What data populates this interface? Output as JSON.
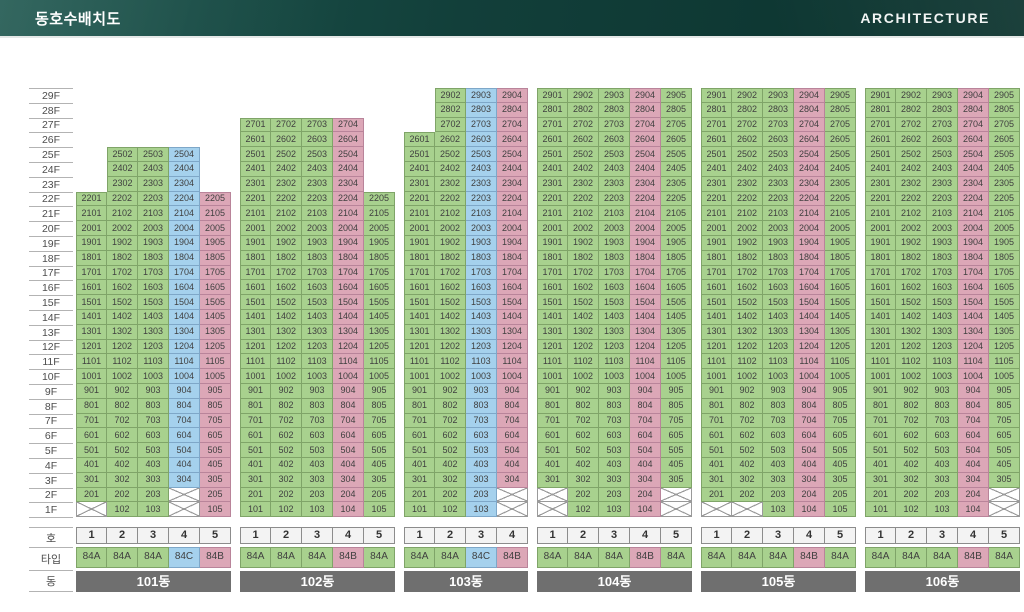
{
  "header": {
    "title": "동호수배치도",
    "brand": "ARCHITECTURE"
  },
  "axis": {
    "floor_labels": [
      "29F",
      "28F",
      "27F",
      "26F",
      "25F",
      "24F",
      "23F",
      "22F",
      "21F",
      "20F",
      "19F",
      "18F",
      "17F",
      "16F",
      "15F",
      "14F",
      "13F",
      "12F",
      "11F",
      "10F",
      "9F",
      "8F",
      "7F",
      "6F",
      "5F",
      "4F",
      "3F",
      "2F",
      "1F"
    ],
    "row_labels": {
      "unit_no": "호",
      "type": "타입",
      "building": "동"
    }
  },
  "palette": {
    "green": {
      "fill": "#a8d18e",
      "border": "#7fa468"
    },
    "blue": {
      "fill": "#a5d1ed",
      "border": "#7ea7c8"
    },
    "pink": {
      "fill": "#dca7b7",
      "border": "#b9849a"
    },
    "blocked": {
      "fill": "#ffffff",
      "border": "#9a9a9a"
    },
    "unit_no_cell": {
      "fill": "#f3f3f3",
      "border": "#8c8c8c",
      "text": "#333333"
    },
    "building_cell": {
      "fill": "#6f6f6f",
      "text": "#ffffff"
    },
    "header_bar": {
      "from": "#1d564e",
      "to": "#0b322d"
    },
    "cell_text": "#3f3f3f",
    "type_colors": {
      "84A": "green",
      "84B": "pink",
      "84C": "blue"
    }
  },
  "buildings": [
    {
      "name": "101동",
      "columns": [
        {
          "no": "1",
          "type": "84A",
          "color": "green",
          "top_floor": 22,
          "crossed_floors": [
            1
          ]
        },
        {
          "no": "2",
          "type": "84A",
          "color": "green",
          "top_floor": 25,
          "crossed_floors": []
        },
        {
          "no": "3",
          "type": "84A",
          "color": "green",
          "top_floor": 25,
          "crossed_floors": []
        },
        {
          "no": "4",
          "type": "84C",
          "color": "blue",
          "top_floor": 25,
          "crossed_floors": [
            2,
            1
          ]
        },
        {
          "no": "5",
          "type": "84B",
          "color": "pink",
          "top_floor": 22,
          "crossed_floors": []
        }
      ]
    },
    {
      "name": "102동",
      "columns": [
        {
          "no": "1",
          "type": "84A",
          "color": "green",
          "top_floor": 27,
          "crossed_floors": []
        },
        {
          "no": "2",
          "type": "84A",
          "color": "green",
          "top_floor": 27,
          "crossed_floors": []
        },
        {
          "no": "3",
          "type": "84A",
          "color": "green",
          "top_floor": 27,
          "crossed_floors": []
        },
        {
          "no": "4",
          "type": "84B",
          "color": "pink",
          "top_floor": 27,
          "crossed_floors": []
        },
        {
          "no": "5",
          "type": "84A",
          "color": "green",
          "top_floor": 22,
          "crossed_floors": []
        }
      ]
    },
    {
      "name": "103동",
      "columns": [
        {
          "no": "1",
          "type": "84A",
          "color": "green",
          "top_floor": 26,
          "crossed_floors": []
        },
        {
          "no": "2",
          "type": "84A",
          "color": "green",
          "top_floor": 29,
          "crossed_floors": []
        },
        {
          "no": "3",
          "type": "84C",
          "color": "blue",
          "top_floor": 29,
          "crossed_floors": []
        },
        {
          "no": "4",
          "type": "84B",
          "color": "pink",
          "top_floor": 29,
          "crossed_floors": [
            2,
            1
          ]
        }
      ]
    },
    {
      "name": "104동",
      "columns": [
        {
          "no": "1",
          "type": "84A",
          "color": "green",
          "top_floor": 29,
          "crossed_floors": [
            2,
            1
          ]
        },
        {
          "no": "2",
          "type": "84A",
          "color": "green",
          "top_floor": 29,
          "crossed_floors": []
        },
        {
          "no": "3",
          "type": "84A",
          "color": "green",
          "top_floor": 29,
          "crossed_floors": []
        },
        {
          "no": "4",
          "type": "84B",
          "color": "pink",
          "top_floor": 29,
          "crossed_floors": []
        },
        {
          "no": "5",
          "type": "84A",
          "color": "green",
          "top_floor": 29,
          "crossed_floors": [
            2,
            1
          ]
        }
      ]
    },
    {
      "name": "105동",
      "columns": [
        {
          "no": "1",
          "type": "84A",
          "color": "green",
          "top_floor": 29,
          "crossed_floors": [
            1
          ]
        },
        {
          "no": "2",
          "type": "84A",
          "color": "green",
          "top_floor": 29,
          "crossed_floors": [
            1
          ]
        },
        {
          "no": "3",
          "type": "84A",
          "color": "green",
          "top_floor": 29,
          "crossed_floors": []
        },
        {
          "no": "4",
          "type": "84B",
          "color": "pink",
          "top_floor": 29,
          "crossed_floors": []
        },
        {
          "no": "5",
          "type": "84A",
          "color": "green",
          "top_floor": 29,
          "crossed_floors": []
        }
      ]
    },
    {
      "name": "106동",
      "columns": [
        {
          "no": "1",
          "type": "84A",
          "color": "green",
          "top_floor": 29,
          "crossed_floors": []
        },
        {
          "no": "2",
          "type": "84A",
          "color": "green",
          "top_floor": 29,
          "crossed_floors": []
        },
        {
          "no": "3",
          "type": "84A",
          "color": "green",
          "top_floor": 29,
          "crossed_floors": []
        },
        {
          "no": "4",
          "type": "84B",
          "color": "pink",
          "top_floor": 29,
          "crossed_floors": []
        },
        {
          "no": "5",
          "type": "84A",
          "color": "green",
          "top_floor": 29,
          "crossed_floors": [
            2,
            1
          ]
        }
      ]
    }
  ]
}
